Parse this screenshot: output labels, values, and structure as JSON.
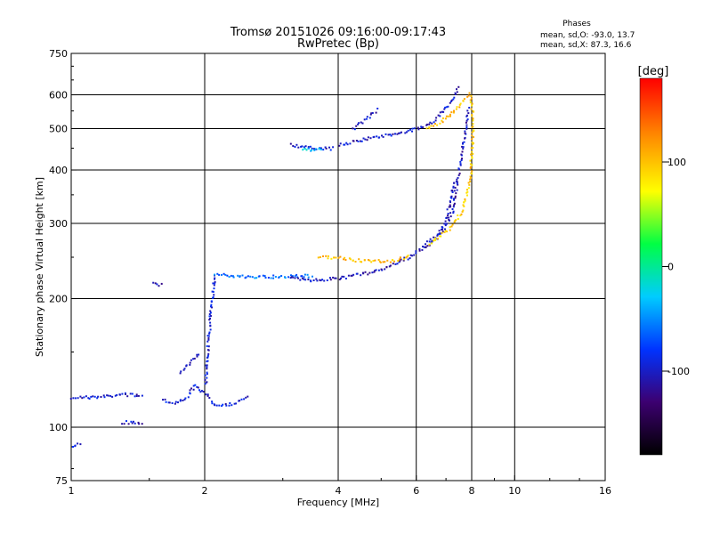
{
  "chart_data": {
    "type": "scatter",
    "title": "Tromsø 20151026 09:16:00-09:17:43",
    "subtitle": "RwPretec (Bp)",
    "xlabel": "Frequency [MHz]",
    "ylabel": "Stationary phase Virtual Height [km]",
    "x_scale": "log",
    "y_scale": "log",
    "xlim": [
      1,
      16
    ],
    "ylim": [
      75,
      750
    ],
    "xticks": [
      1,
      2,
      4,
      6,
      8,
      10,
      16
    ],
    "yticks": [
      75,
      100,
      200,
      300,
      400,
      500,
      600,
      750
    ],
    "x_grid": [
      1,
      2,
      4,
      6,
      8,
      10,
      16
    ],
    "y_grid": [
      100,
      200,
      300,
      400,
      500,
      600
    ],
    "grid": true,
    "legend": {
      "title": "Phases",
      "line1": "mean, sd,O: -93.0, 13.7",
      "line2": "mean, sd,X:  87.3, 16.6"
    },
    "colorbar": {
      "label": "[deg]",
      "range": [
        -180,
        180
      ],
      "ticks": [
        100,
        0,
        -100
      ],
      "placement": "right"
    },
    "series": [
      {
        "trace": [
          [
            1.0,
            118
          ],
          [
            1.15,
            118
          ],
          [
            1.3,
            120
          ],
          [
            1.45,
            119
          ]
        ],
        "phase": -100
      },
      {
        "trace": [
          [
            1.3,
            103
          ],
          [
            1.45,
            103
          ]
        ],
        "phase": -100
      },
      {
        "trace": [
          [
            1.0,
            91
          ],
          [
            1.05,
            92
          ]
        ],
        "phase": -100
      },
      {
        "trace": [
          [
            1.6,
            117
          ],
          [
            1.7,
            114
          ],
          [
            1.8,
            117
          ],
          [
            1.9,
            126
          ],
          [
            2.0,
            120
          ],
          [
            2.1,
            113
          ],
          [
            2.3,
            114
          ],
          [
            2.5,
            118
          ]
        ],
        "phase": -98
      },
      {
        "trace": [
          [
            2.0,
            126
          ],
          [
            2.02,
            150
          ],
          [
            2.05,
            180
          ],
          [
            2.08,
            210
          ],
          [
            2.1,
            230
          ]
        ],
        "phase": -95
      },
      {
        "trace": [
          [
            1.75,
            135
          ],
          [
            1.85,
            142
          ],
          [
            1.95,
            150
          ]
        ],
        "phase": -100
      },
      {
        "trace": [
          [
            1.52,
            220
          ],
          [
            1.6,
            215
          ]
        ],
        "phase": -105
      },
      {
        "trace": [
          [
            2.1,
            230
          ],
          [
            2.4,
            226
          ],
          [
            2.8,
            226
          ],
          [
            3.3,
            227
          ],
          [
            3.5,
            227
          ]
        ],
        "phase": -60
      },
      {
        "trace": [
          [
            3.1,
            224
          ],
          [
            3.5,
            222
          ],
          [
            4.0,
            224
          ],
          [
            4.6,
            230
          ],
          [
            5.2,
            239
          ],
          [
            5.8,
            252
          ],
          [
            6.3,
            266
          ],
          [
            6.8,
            285
          ],
          [
            7.2,
            320
          ],
          [
            7.4,
            380
          ],
          [
            7.55,
            430
          ],
          [
            7.7,
            490
          ],
          [
            7.8,
            540
          ],
          [
            7.85,
            565
          ]
        ],
        "phase": -105
      },
      {
        "trace": [
          [
            6.2,
            268
          ],
          [
            6.6,
            280
          ],
          [
            6.9,
            300
          ],
          [
            7.1,
            330
          ],
          [
            7.25,
            380
          ]
        ],
        "phase": -100
      },
      {
        "trace": [
          [
            3.6,
            252
          ],
          [
            4.0,
            250
          ],
          [
            4.5,
            246
          ],
          [
            5.2,
            246
          ],
          [
            5.8,
            252
          ]
        ],
        "phase": 100
      },
      {
        "trace": [
          [
            6.4,
            270
          ],
          [
            6.8,
            282
          ],
          [
            7.2,
            296
          ],
          [
            7.6,
            325
          ],
          [
            7.9,
            380
          ],
          [
            8.0,
            460
          ],
          [
            8.0,
            550
          ],
          [
            7.9,
            610
          ]
        ],
        "phase": 95
      },
      {
        "trace": [
          [
            3.1,
            460
          ],
          [
            3.3,
            455
          ],
          [
            3.6,
            450
          ],
          [
            3.9,
            452
          ]
        ],
        "phase": -100
      },
      {
        "trace": [
          [
            3.3,
            447
          ],
          [
            3.7,
            451
          ]
        ],
        "phase": -30
      },
      {
        "trace": [
          [
            4.0,
            460
          ],
          [
            4.5,
            472
          ],
          [
            5.0,
            483
          ],
          [
            5.5,
            492
          ],
          [
            6.0,
            502
          ],
          [
            6.5,
            520
          ],
          [
            7.0,
            565
          ],
          [
            7.3,
            600
          ],
          [
            7.45,
            630
          ]
        ],
        "phase": -100
      },
      {
        "trace": [
          [
            4.3,
            500
          ],
          [
            4.6,
            528
          ],
          [
            4.9,
            560
          ]
        ],
        "phase": -100
      },
      {
        "trace": [
          [
            6.3,
            500
          ],
          [
            6.8,
            520
          ],
          [
            7.2,
            548
          ],
          [
            7.6,
            580
          ],
          [
            7.9,
            610
          ]
        ],
        "phase": 100
      }
    ]
  }
}
